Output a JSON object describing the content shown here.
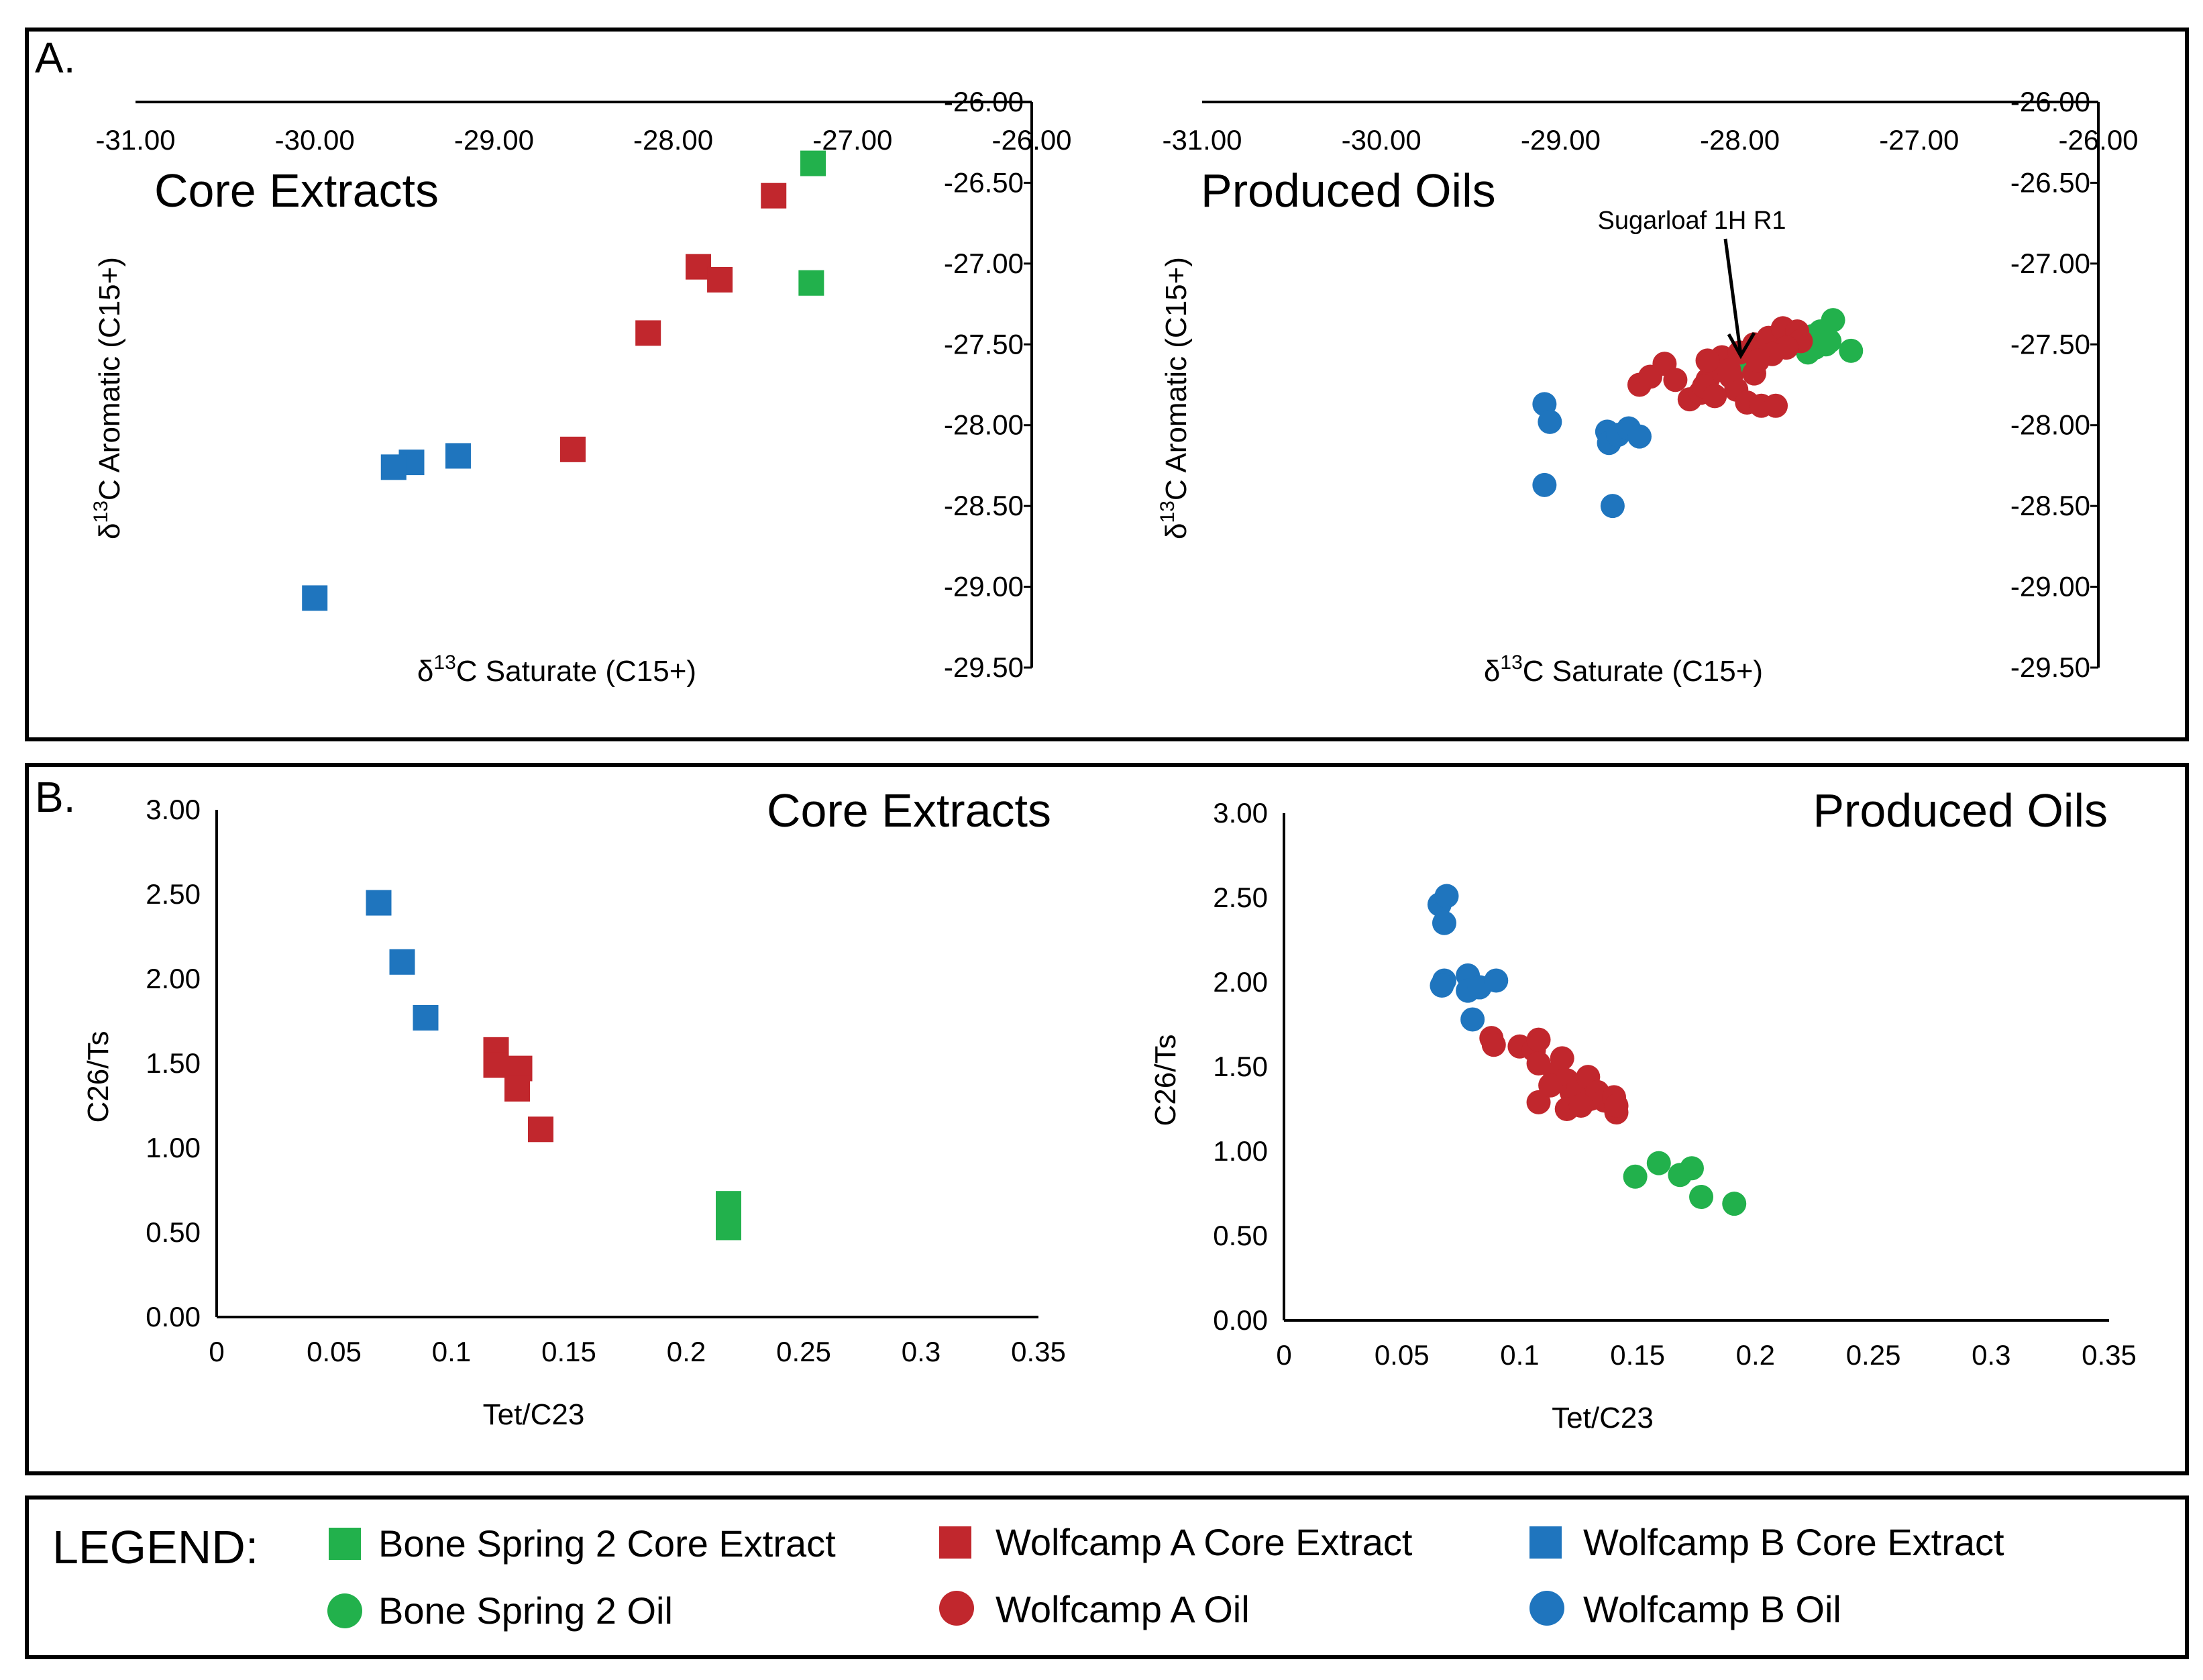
{
  "panels": {
    "a_label": "A.",
    "b_label": "B."
  },
  "annotation": "Sugarloaf 1H R1",
  "legend": {
    "title": "LEGEND:",
    "items": [
      {
        "label": "Bone Spring 2 Core Extract",
        "color": "#22b14c",
        "marker": "square"
      },
      {
        "label": "Wolfcamp A Core Extract",
        "color": "#c1272d",
        "marker": "square"
      },
      {
        "label": "Wolfcamp B Core Extract",
        "color": "#1f75be",
        "marker": "square"
      },
      {
        "label": "Bone Spring 2 Oil",
        "color": "#22b14c",
        "marker": "circle"
      },
      {
        "label": "Wolfcamp A Oil",
        "color": "#c1272d",
        "marker": "circle"
      },
      {
        "label": "Wolfcamp B Oil",
        "color": "#1f75be",
        "marker": "circle"
      }
    ]
  },
  "chart_data": [
    {
      "id": "a1",
      "type": "scatter",
      "title": "Core Extracts",
      "xlabel_prefix": "δ",
      "xlabel_sup": "13",
      "xlabel_main": "C Saturate (C15+)",
      "ylabel_prefix": "δ",
      "ylabel_sup": "13",
      "ylabel_main": "C Aromatic (C15+)",
      "xlim": [
        -31.0,
        -26.0
      ],
      "ylim": [
        -29.5,
        -26.0
      ],
      "xticks": [
        "-31.00",
        "-30.00",
        "-29.00",
        "-28.00",
        "-27.00",
        "-26.00"
      ],
      "yticks": [
        "-26.00",
        "-26.50",
        "-27.00",
        "-27.50",
        "-28.00",
        "-28.50",
        "-29.00",
        "-29.50"
      ],
      "marker": "square",
      "series": [
        {
          "name": "Bone Spring 2 Core Extract",
          "color": "#22b14c",
          "points": [
            [
              -27.22,
              -26.38
            ],
            [
              -27.23,
              -27.12
            ]
          ]
        },
        {
          "name": "Wolfcamp A Core Extract",
          "color": "#c1272d",
          "points": [
            [
              -27.44,
              -26.58
            ],
            [
              -27.86,
              -27.02
            ],
            [
              -27.74,
              -27.1
            ],
            [
              -28.14,
              -27.43
            ],
            [
              -28.56,
              -28.15
            ]
          ]
        },
        {
          "name": "Wolfcamp B Core Extract",
          "color": "#1f75be",
          "points": [
            [
              -29.2,
              -28.19
            ],
            [
              -29.46,
              -28.23
            ],
            [
              -29.56,
              -28.26
            ],
            [
              -30.0,
              -29.07
            ]
          ]
        }
      ]
    },
    {
      "id": "a2",
      "type": "scatter",
      "title": "Produced Oils",
      "xlabel_prefix": "δ",
      "xlabel_sup": "13",
      "xlabel_main": "C Saturate (C15+)",
      "ylabel_prefix": "δ",
      "ylabel_sup": "13",
      "ylabel_main": "C Aromatic (C15+)",
      "xlim": [
        -31.0,
        -26.0
      ],
      "ylim": [
        -29.5,
        -26.0
      ],
      "xticks": [
        "-31.00",
        "-30.00",
        "-29.00",
        "-28.00",
        "-27.00",
        "-26.00"
      ],
      "yticks": [
        "-26.00",
        "-26.50",
        "-27.00",
        "-27.50",
        "-28.00",
        "-28.50",
        "-29.00",
        "-29.50"
      ],
      "marker": "circle",
      "annotation_point": [
        -27.98,
        -27.62
      ],
      "series": [
        {
          "name": "Bone Spring 2 Oil",
          "color": "#22b14c",
          "points": [
            [
              -27.98,
              -27.62
            ],
            [
              -27.48,
              -27.35
            ],
            [
              -27.55,
              -27.42
            ],
            [
              -27.52,
              -27.5
            ],
            [
              -27.58,
              -27.52
            ],
            [
              -27.62,
              -27.55
            ],
            [
              -27.6,
              -27.45
            ],
            [
              -27.38,
              -27.54
            ],
            [
              -27.5,
              -27.48
            ]
          ]
        },
        {
          "name": "Wolfcamp A Oil",
          "color": "#c1272d",
          "points": [
            [
              -28.56,
              -27.75
            ],
            [
              -28.5,
              -27.7
            ],
            [
              -28.42,
              -27.62
            ],
            [
              -28.36,
              -27.72
            ],
            [
              -28.28,
              -27.84
            ],
            [
              -28.22,
              -27.8
            ],
            [
              -28.18,
              -27.72
            ],
            [
              -28.12,
              -27.66
            ],
            [
              -28.05,
              -27.7
            ],
            [
              -28.1,
              -27.58
            ],
            [
              -28.18,
              -27.6
            ],
            [
              -28.02,
              -27.78
            ],
            [
              -27.96,
              -27.86
            ],
            [
              -27.88,
              -27.88
            ],
            [
              -27.8,
              -27.88
            ],
            [
              -27.92,
              -27.68
            ],
            [
              -28.0,
              -27.55
            ],
            [
              -27.92,
              -27.5
            ],
            [
              -27.84,
              -27.46
            ],
            [
              -27.76,
              -27.4
            ],
            [
              -27.68,
              -27.42
            ],
            [
              -27.66,
              -27.48
            ],
            [
              -27.74,
              -27.52
            ],
            [
              -27.82,
              -27.56
            ],
            [
              -27.9,
              -27.6
            ],
            [
              -28.06,
              -27.66
            ],
            [
              -28.2,
              -27.76
            ],
            [
              -28.14,
              -27.82
            ]
          ]
        },
        {
          "name": "Wolfcamp B Oil",
          "color": "#1f75be",
          "points": [
            [
              -29.09,
              -27.87
            ],
            [
              -29.06,
              -27.98
            ],
            [
              -28.74,
              -28.04
            ],
            [
              -28.73,
              -28.11
            ],
            [
              -28.68,
              -28.06
            ],
            [
              -28.62,
              -28.02
            ],
            [
              -28.56,
              -28.07
            ],
            [
              -29.09,
              -28.37
            ],
            [
              -28.71,
              -28.5
            ]
          ]
        }
      ]
    },
    {
      "id": "b1",
      "type": "scatter",
      "title": "Core Extracts",
      "xlabel_main": "Tet/C23",
      "ylabel_main": "C26/Ts",
      "xlim": [
        0,
        0.35
      ],
      "ylim": [
        0,
        3.0
      ],
      "xticks": [
        "0",
        "0.05",
        "0.1",
        "0.15",
        "0.2",
        "0.25",
        "0.3",
        "0.35"
      ],
      "yticks": [
        "3.00",
        "2.50",
        "2.00",
        "1.50",
        "1.00",
        "0.50",
        "0.00"
      ],
      "marker": "square",
      "series": [
        {
          "name": "Bone Spring 2 Core Extract",
          "color": "#22b14c",
          "points": [
            [
              0.218,
              0.67
            ],
            [
              0.218,
              0.53
            ]
          ]
        },
        {
          "name": "Wolfcamp A Core Extract",
          "color": "#c1272d",
          "points": [
            [
              0.119,
              1.58
            ],
            [
              0.119,
              1.49
            ],
            [
              0.129,
              1.47
            ],
            [
              0.128,
              1.35
            ],
            [
              0.138,
              1.11
            ]
          ]
        },
        {
          "name": "Wolfcamp B Core Extract",
          "color": "#1f75be",
          "points": [
            [
              0.069,
              2.45
            ],
            [
              0.079,
              2.1
            ],
            [
              0.089,
              1.77
            ]
          ]
        }
      ]
    },
    {
      "id": "b2",
      "type": "scatter",
      "title": "Produced Oils",
      "xlabel_main": "Tet/C23",
      "ylabel_main": "C26/Ts",
      "xlim": [
        0,
        0.35
      ],
      "ylim": [
        0,
        3.0
      ],
      "xticks": [
        "0",
        "0.05",
        "0.1",
        "0.15",
        "0.2",
        "0.25",
        "0.3",
        "0.35"
      ],
      "yticks": [
        "3.00",
        "2.50",
        "2.00",
        "1.50",
        "1.00",
        "0.50",
        "0.00"
      ],
      "marker": "circle",
      "series": [
        {
          "name": "Bone Spring 2 Oil",
          "color": "#22b14c",
          "points": [
            [
              0.149,
              0.85
            ],
            [
              0.159,
              0.93
            ],
            [
              0.168,
              0.86
            ],
            [
              0.173,
              0.9
            ],
            [
              0.177,
              0.73
            ],
            [
              0.191,
              0.69
            ]
          ]
        },
        {
          "name": "Wolfcamp A Oil",
          "color": "#c1272d",
          "points": [
            [
              0.088,
              1.67
            ],
            [
              0.089,
              1.63
            ],
            [
              0.1,
              1.62
            ],
            [
              0.106,
              1.6
            ],
            [
              0.108,
              1.66
            ],
            [
              0.108,
              1.52
            ],
            [
              0.115,
              1.46
            ],
            [
              0.118,
              1.55
            ],
            [
              0.12,
              1.42
            ],
            [
              0.122,
              1.35
            ],
            [
              0.125,
              1.38
            ],
            [
              0.129,
              1.44
            ],
            [
              0.13,
              1.31
            ],
            [
              0.133,
              1.35
            ],
            [
              0.136,
              1.3
            ],
            [
              0.14,
              1.32
            ],
            [
              0.141,
              1.23
            ],
            [
              0.141,
              1.27
            ],
            [
              0.108,
              1.29
            ],
            [
              0.12,
              1.25
            ],
            [
              0.126,
              1.27
            ],
            [
              0.113,
              1.39
            ]
          ]
        },
        {
          "name": "Wolfcamp B Oil",
          "color": "#1f75be",
          "points": [
            [
              0.066,
              2.46
            ],
            [
              0.069,
              2.51
            ],
            [
              0.068,
              2.35
            ],
            [
              0.068,
              2.01
            ],
            [
              0.067,
              1.98
            ],
            [
              0.078,
              2.04
            ],
            [
              0.078,
              1.95
            ],
            [
              0.083,
              1.97
            ],
            [
              0.09,
              2.01
            ],
            [
              0.08,
              1.78
            ]
          ]
        }
      ]
    }
  ]
}
